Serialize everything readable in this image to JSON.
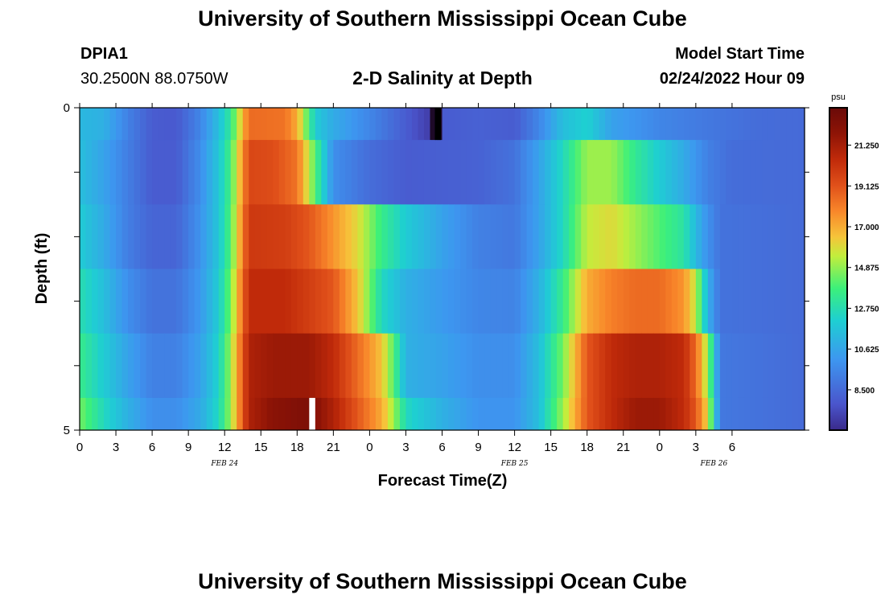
{
  "header": {
    "title": "University of Southern Mississippi Ocean Cube",
    "site_name": "DPIA1",
    "site_coords": "30.2500N  88.0750W",
    "chart_title": "2-D Salinity at Depth",
    "model_start_label": "Model Start Time",
    "model_start_value": "02/24/2022 Hour 09"
  },
  "footer": {
    "title": "University of Southern Mississippi Ocean Cube"
  },
  "chart_data": {
    "type": "heatmap",
    "xlabel": "Forecast Time(Z)",
    "ylabel": "Depth (ft)",
    "ylim": [
      0,
      5
    ],
    "y_tick_labels": [
      "0",
      "5"
    ],
    "x_hours": [
      0,
      60
    ],
    "x_tick_labels": [
      "0",
      "3",
      "6",
      "9",
      "12",
      "15",
      "18",
      "21",
      "0",
      "3",
      "6",
      "9",
      "12",
      "15",
      "18",
      "21",
      "0",
      "3",
      "6"
    ],
    "date_labels": [
      {
        "label": "FEB 24",
        "hour": 12
      },
      {
        "label": "FEB 25",
        "hour": 36
      },
      {
        "label": "FEB 26",
        "hour": 52.5
      }
    ],
    "colorbar": {
      "unit": "psu",
      "range": [
        6.4,
        23.2
      ],
      "tick_labels": [
        "21.250",
        "19.125",
        "17.000",
        "14.875",
        "12.750",
        "10.625",
        "8.500"
      ],
      "tick_values": [
        21.25,
        19.125,
        17.0,
        14.875,
        12.75,
        10.625,
        8.5
      ]
    },
    "rows": [
      {
        "depth_range": [
          0,
          0.5
        ],
        "points": [
          [
            0,
            11.3
          ],
          [
            2,
            11.0
          ],
          [
            4,
            9.3
          ],
          [
            6,
            8.0
          ],
          [
            8,
            7.9
          ],
          [
            10,
            9.5
          ],
          [
            11.5,
            11.5
          ],
          [
            12.5,
            13.3
          ],
          [
            14,
            18.5
          ],
          [
            17,
            18.3
          ],
          [
            18,
            17.0
          ],
          [
            19.5,
            12.0
          ],
          [
            21,
            10.8
          ],
          [
            24,
            9.5
          ],
          [
            27,
            8.0
          ],
          [
            29,
            7.0
          ],
          [
            29.6,
            5.0
          ],
          [
            30.2,
            8.0
          ],
          [
            33,
            8.2
          ],
          [
            36,
            8.0
          ],
          [
            38,
            9.5
          ],
          [
            40,
            11.5
          ],
          [
            42,
            12.2
          ],
          [
            44,
            10.5
          ],
          [
            46,
            10.0
          ],
          [
            48,
            9.5
          ],
          [
            52,
            9.0
          ],
          [
            56,
            8.6
          ],
          [
            60,
            8.5
          ]
        ]
      },
      {
        "depth_range": [
          0.5,
          1.5
        ],
        "points": [
          [
            0,
            11.5
          ],
          [
            2,
            10.5
          ],
          [
            4,
            9.2
          ],
          [
            6,
            8.0
          ],
          [
            8,
            8.0
          ],
          [
            10,
            9.8
          ],
          [
            11.5,
            11.8
          ],
          [
            12.5,
            13.8
          ],
          [
            14,
            19.5
          ],
          [
            16,
            19.3
          ],
          [
            18,
            18.3
          ],
          [
            19.5,
            14.0
          ],
          [
            21,
            9.8
          ],
          [
            24,
            8.6
          ],
          [
            27,
            8.0
          ],
          [
            30,
            8.1
          ],
          [
            33,
            8.2
          ],
          [
            36,
            8.8
          ],
          [
            38,
            10.5
          ],
          [
            40,
            12.5
          ],
          [
            42,
            15.0
          ],
          [
            44,
            15.0
          ],
          [
            46,
            13.3
          ],
          [
            48,
            12.0
          ],
          [
            50,
            10.8
          ],
          [
            52,
            9.3
          ],
          [
            54,
            8.6
          ],
          [
            60,
            8.5
          ]
        ]
      },
      {
        "depth_range": [
          1.5,
          2.5
        ],
        "points": [
          [
            0,
            12.0
          ],
          [
            2,
            10.8
          ],
          [
            4,
            9.2
          ],
          [
            6,
            8.3
          ],
          [
            8,
            8.3
          ],
          [
            10,
            10.0
          ],
          [
            11.5,
            11.8
          ],
          [
            12.5,
            14.0
          ],
          [
            14,
            20.0
          ],
          [
            17,
            19.8
          ],
          [
            19,
            19.0
          ],
          [
            21,
            17.5
          ],
          [
            23,
            16.0
          ],
          [
            25,
            13.5
          ],
          [
            27,
            12.0
          ],
          [
            30,
            10.5
          ],
          [
            33,
            9.3
          ],
          [
            36,
            9.0
          ],
          [
            38,
            10.5
          ],
          [
            40,
            12.5
          ],
          [
            42,
            15.5
          ],
          [
            44,
            16.0
          ],
          [
            46,
            15.0
          ],
          [
            48,
            14.0
          ],
          [
            50,
            13.0
          ],
          [
            51.5,
            10.5
          ],
          [
            53,
            8.8
          ],
          [
            60,
            8.5
          ]
        ]
      },
      {
        "depth_range": [
          2.5,
          3.5
        ],
        "points": [
          [
            0,
            12.8
          ],
          [
            2,
            11.5
          ],
          [
            4,
            9.8
          ],
          [
            6,
            8.8
          ],
          [
            8,
            8.8
          ],
          [
            10,
            10.2
          ],
          [
            11.5,
            12.0
          ],
          [
            12.5,
            14.5
          ],
          [
            14,
            20.5
          ],
          [
            17,
            20.5
          ],
          [
            19,
            19.8
          ],
          [
            21,
            19.0
          ],
          [
            23,
            16.5
          ],
          [
            25,
            12.5
          ],
          [
            27,
            11.0
          ],
          [
            30,
            10.2
          ],
          [
            33,
            9.5
          ],
          [
            36,
            9.4
          ],
          [
            38,
            11.0
          ],
          [
            40,
            13.5
          ],
          [
            42,
            17.0
          ],
          [
            44,
            18.0
          ],
          [
            46,
            18.5
          ],
          [
            48,
            18.5
          ],
          [
            50,
            17.5
          ],
          [
            51,
            15.5
          ],
          [
            52,
            11.0
          ],
          [
            53,
            8.8
          ],
          [
            60,
            8.5
          ]
        ]
      },
      {
        "depth_range": [
          3.5,
          4.5
        ],
        "points": [
          [
            0,
            13.5
          ],
          [
            2,
            12.0
          ],
          [
            4,
            10.5
          ],
          [
            6,
            9.3
          ],
          [
            8,
            9.3
          ],
          [
            10,
            10.5
          ],
          [
            11.5,
            12.3
          ],
          [
            12.5,
            15.0
          ],
          [
            14,
            21.0
          ],
          [
            16,
            21.5
          ],
          [
            19,
            21.5
          ],
          [
            21,
            20.5
          ],
          [
            23,
            18.5
          ],
          [
            25,
            16.5
          ],
          [
            26,
            14.0
          ],
          [
            27,
            11.0
          ],
          [
            30,
            10.5
          ],
          [
            33,
            9.8
          ],
          [
            36,
            9.8
          ],
          [
            38,
            11.5
          ],
          [
            40,
            14.5
          ],
          [
            42,
            19.0
          ],
          [
            44,
            20.5
          ],
          [
            46,
            21.0
          ],
          [
            48,
            21.0
          ],
          [
            50,
            20.5
          ],
          [
            51,
            18.5
          ],
          [
            52,
            15.0
          ],
          [
            53,
            9.0
          ],
          [
            60,
            8.5
          ]
        ]
      },
      {
        "depth_range": [
          4.5,
          5
        ],
        "points": [
          [
            0,
            14.5
          ],
          [
            2,
            12.5
          ],
          [
            4,
            11.0
          ],
          [
            6,
            9.8
          ],
          [
            8,
            9.8
          ],
          [
            10,
            10.8
          ],
          [
            11.5,
            12.5
          ],
          [
            12.5,
            15.0
          ],
          [
            14,
            21.0
          ],
          [
            16,
            22.0
          ],
          [
            19,
            22.5
          ],
          [
            21,
            21.0
          ],
          [
            23,
            19.0
          ],
          [
            25,
            17.0
          ],
          [
            26,
            15.0
          ],
          [
            27,
            12.5
          ],
          [
            30,
            11.0
          ],
          [
            33,
            10.0
          ],
          [
            36,
            10.0
          ],
          [
            38,
            11.5
          ],
          [
            40,
            15.0
          ],
          [
            42,
            19.0
          ],
          [
            44,
            20.5
          ],
          [
            46,
            21.5
          ],
          [
            48,
            21.5
          ],
          [
            50,
            20.5
          ],
          [
            51,
            19.0
          ],
          [
            52,
            16.0
          ],
          [
            53,
            9.0
          ],
          [
            60,
            8.5
          ]
        ]
      }
    ],
    "special_cells": [
      {
        "row": 0,
        "hour_range": [
          29.4,
          29.9
        ],
        "color": "#000000"
      },
      {
        "row": 5,
        "hour_range": [
          19.0,
          19.5
        ],
        "color": "#ffffff"
      }
    ]
  }
}
